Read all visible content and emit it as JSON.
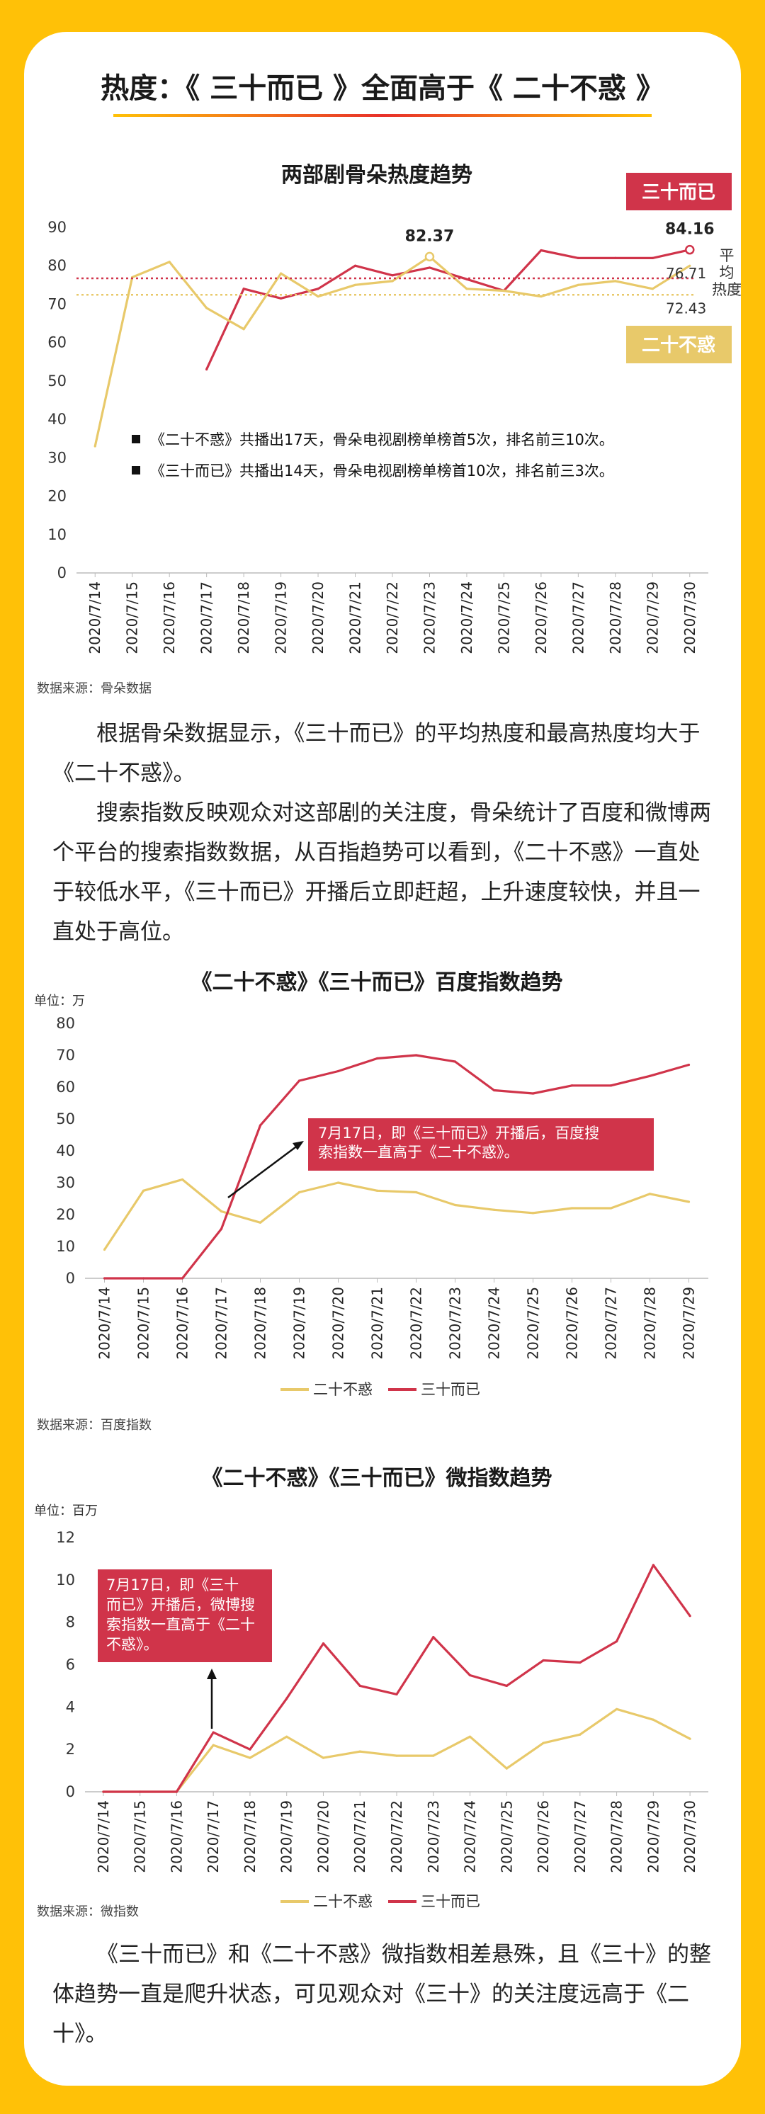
{
  "colors": {
    "frame": "#FFC107",
    "red": "#D0344A",
    "yellow": "#E8C96A",
    "card": "#FFFFFF"
  },
  "header": {
    "title": "热度：《 三十而已 》全面高于《 二十不惑 》"
  },
  "chart1": {
    "chart_data": {
      "type": "line",
      "title": "两部剧骨朵热度趋势",
      "x": [
        "2020/7/14",
        "2020/7/15",
        "2020/7/16",
        "2020/7/17",
        "2020/7/18",
        "2020/7/19",
        "2020/7/20",
        "2020/7/21",
        "2020/7/22",
        "2020/7/23",
        "2020/7/24",
        "2020/7/25",
        "2020/7/26",
        "2020/7/27",
        "2020/7/28",
        "2020/7/29",
        "2020/7/30"
      ],
      "ylim": [
        0,
        90
      ],
      "yticks": [
        0,
        10,
        20,
        30,
        40,
        50,
        60,
        70,
        80,
        90
      ],
      "series": [
        {
          "name": "三十而已",
          "color": "#D0344A",
          "values": [
            null,
            null,
            null,
            53,
            74,
            71.5,
            74,
            80,
            77.5,
            79.5,
            76.5,
            73.5,
            84,
            82,
            82,
            82,
            84.16
          ]
        },
        {
          "name": "二十不惑",
          "color": "#E8C96A",
          "values": [
            33,
            77,
            81,
            69,
            63.5,
            78,
            72,
            75,
            76,
            82.37,
            74,
            73.5,
            72,
            75,
            76,
            74,
            80
          ]
        }
      ],
      "averages": [
        {
          "series": "三十而已",
          "value": 76.71,
          "label": "76.71"
        },
        {
          "series": "二十不惑",
          "value": 72.43,
          "label": "72.43"
        }
      ],
      "peak_labels": [
        {
          "series": "二十不惑",
          "index": 9,
          "label": "82.37"
        },
        {
          "series": "三十而已",
          "index": 16,
          "label": "84.16"
        }
      ],
      "legend": {
        "red": "三十而已",
        "yellow": "二十不惑"
      },
      "avg_caption": "平均热度",
      "notes": [
        "《二十不惑》共播出17天，骨朵电视剧榜单榜首5次，排名前三10次。",
        "《三十而已》共播出14天，骨朵电视剧榜单榜首10次，排名前三3次。"
      ],
      "grid": false
    },
    "source": "数据来源：骨朵数据"
  },
  "text1": {
    "p1": "根据骨朵数据显示，《三十而已》的平均热度和最高热度均大于《二十不惑》。",
    "p2": "搜索指数反映观众对这部剧的关注度，骨朵统计了百度和微博两个平台的搜索指数数据，从百指趋势可以看到，《二十不惑》一直处于较低水平，《三十而已》开播后立即赶超，上升速度较快，并且一直处于高位。"
  },
  "chart2": {
    "chart_data": {
      "type": "line",
      "title": "《二十不惑》《三十而已》百度指数趋势",
      "unit": "单位：万",
      "x": [
        "2020/7/14",
        "2020/7/15",
        "2020/7/16",
        "2020/7/17",
        "2020/7/18",
        "2020/7/19",
        "2020/7/20",
        "2020/7/21",
        "2020/7/22",
        "2020/7/23",
        "2020/7/24",
        "2020/7/25",
        "2020/7/26",
        "2020/7/27",
        "2020/7/28",
        "2020/7/29"
      ],
      "ylim": [
        0,
        80
      ],
      "yticks": [
        0,
        10,
        20,
        30,
        40,
        50,
        60,
        70,
        80
      ],
      "series": [
        {
          "name": "二十不惑",
          "color": "#E8C96A",
          "values": [
            9,
            27.5,
            31,
            21,
            17.5,
            27,
            30,
            27.5,
            27,
            23,
            21.5,
            20.5,
            22,
            22,
            26.5,
            24
          ]
        },
        {
          "name": "三十而已",
          "color": "#D0344A",
          "values": [
            0,
            0,
            0,
            15.5,
            48,
            62,
            65,
            69,
            70,
            68,
            59,
            58,
            60.5,
            60.5,
            63.5,
            67
          ]
        }
      ],
      "annotation": {
        "text": "7月17日，即《三十而已》开播后，百度搜索指数一直高于《二十不惑》。"
      },
      "legend_position": "bottom"
    },
    "source": "数据来源：百度指数"
  },
  "chart3": {
    "chart_data": {
      "type": "line",
      "title": "《二十不惑》《三十而已》微指数趋势",
      "unit": "单位：百万",
      "x": [
        "2020/7/14",
        "2020/7/15",
        "2020/7/16",
        "2020/7/17",
        "2020/7/18",
        "2020/7/19",
        "2020/7/20",
        "2020/7/21",
        "2020/7/22",
        "2020/7/23",
        "2020/7/24",
        "2020/7/25",
        "2020/7/26",
        "2020/7/27",
        "2020/7/28",
        "2020/7/29",
        "2020/7/30"
      ],
      "ylim": [
        0,
        12
      ],
      "yticks": [
        0,
        2,
        4,
        6,
        8,
        10,
        12
      ],
      "series": [
        {
          "name": "二十不惑",
          "color": "#E8C96A",
          "values": [
            0,
            0,
            0,
            2.2,
            1.6,
            2.6,
            1.6,
            1.9,
            1.7,
            1.7,
            2.6,
            1.1,
            2.3,
            2.7,
            3.9,
            3.4,
            2.5
          ]
        },
        {
          "name": "三十而已",
          "color": "#D0344A",
          "values": [
            0,
            0,
            0,
            2.8,
            2.0,
            4.4,
            7.0,
            5.0,
            4.6,
            7.3,
            5.5,
            5.0,
            6.2,
            6.1,
            7.1,
            10.7,
            8.3
          ]
        }
      ],
      "annotation": {
        "text": "7月17日，即《三十而已》开播后，微博搜索指数一直高于《二十不惑》。"
      },
      "legend_position": "bottom"
    },
    "source": "数据来源：微指数"
  },
  "text2": {
    "p1": "《三十而已》和《二十不惑》微指数相差悬殊，且《三十》的整体趋势一直是爬升状态，可见观众对《三十》的关注度远高于《二十》。"
  }
}
